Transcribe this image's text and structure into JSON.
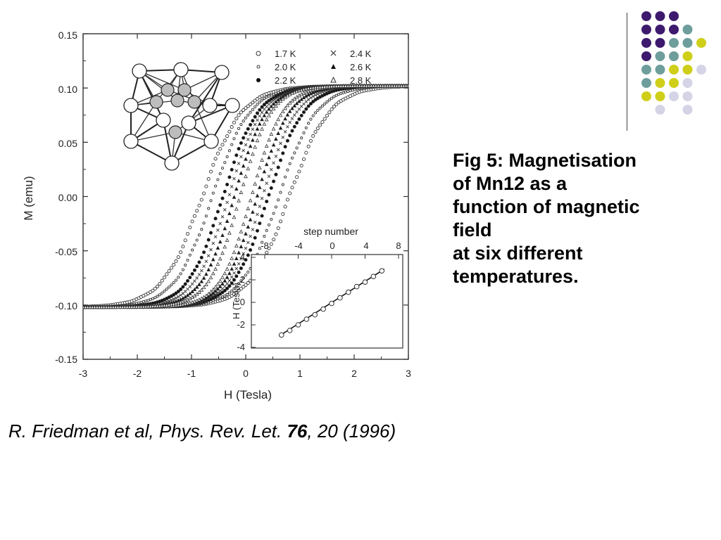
{
  "caption": {
    "lines": [
      "Fig 5: Magnetisation",
      "of Mn12 as a",
      "function of magnetic",
      "field",
      "at six different",
      "temperatures."
    ]
  },
  "citation": {
    "prefix": "R. Friedman et al, Phys. Rev. Let. ",
    "volume": "76",
    "suffix": ", 20 (1996)"
  },
  "decoration": {
    "colors": {
      "purple": "#3d1a6e",
      "teal": "#6e9e9c",
      "yellow": "#cfcf1a",
      "lavender": "#d4d4e6"
    }
  },
  "chart_data": [
    {
      "type": "scatter",
      "title": "",
      "xlabel": "H (Tesla)",
      "ylabel": "M (emu)",
      "xlim": [
        -3,
        3
      ],
      "ylim": [
        -0.15,
        0.15
      ],
      "x_ticks": [
        -3,
        -2,
        -1,
        0,
        1,
        2,
        3
      ],
      "x_tick_labels": [
        "-3",
        "-2",
        "-1",
        "0",
        "1",
        "2",
        "3"
      ],
      "y_ticks": [
        0.15,
        0.1,
        0.05,
        0.0,
        -0.05,
        -0.1,
        -0.15
      ],
      "y_tick_labels": [
        "0.15",
        "0.10",
        "0.05",
        "0.00",
        "-0.05",
        "-0.10",
        "-0.15"
      ],
      "grid": false,
      "legend_position": "top-right",
      "legend": [
        {
          "label": "1.7 K",
          "marker": "open-circle"
        },
        {
          "label": "2.4 K",
          "marker": "cross"
        },
        {
          "label": "2.0 K",
          "marker": "small-open-circle"
        },
        {
          "label": "2.6 K",
          "marker": "filled-triangle"
        },
        {
          "label": "2.2 K",
          "marker": "filled-circle"
        },
        {
          "label": "2.8 K",
          "marker": "open-triangle"
        }
      ],
      "series": [
        {
          "name": "1.7 K",
          "marker": "open-circle",
          "coercive_field": 2.3,
          "m_sat": 0.102
        },
        {
          "name": "2.0 K",
          "marker": "small-open-circle",
          "coercive_field": 1.75,
          "m_sat": 0.102
        },
        {
          "name": "2.2 K",
          "marker": "filled-circle",
          "coercive_field": 1.2,
          "m_sat": 0.102
        },
        {
          "name": "2.4 K",
          "marker": "cross",
          "coercive_field": 0.9,
          "m_sat": 0.102
        },
        {
          "name": "2.6 K",
          "marker": "filled-triangle",
          "coercive_field": 0.6,
          "m_sat": 0.102
        },
        {
          "name": "2.8 K",
          "marker": "open-triangle",
          "coercive_field": 0.3,
          "m_sat": 0.102
        }
      ]
    },
    {
      "type": "scatter",
      "title": "",
      "xlabel": "step number",
      "ylabel": "H (Tesla)",
      "xlim": [
        -8,
        8
      ],
      "ylim": [
        -4,
        4
      ],
      "x_ticks": [
        -8,
        -4,
        0,
        4,
        8
      ],
      "x_tick_labels": [
        "-8",
        "-4",
        "0",
        "4",
        "8"
      ],
      "y_ticks": [
        4,
        2,
        0,
        -2,
        -4
      ],
      "y_tick_labels": [
        "4",
        "2",
        "0",
        "-2",
        "-4"
      ],
      "x": [
        -6,
        -5,
        -4,
        -3,
        -2,
        -1,
        0,
        1,
        2,
        3,
        4,
        5,
        6
      ],
      "y": [
        -2.9,
        -2.5,
        -2.0,
        -1.5,
        -1.1,
        -0.6,
        -0.1,
        0.4,
        0.9,
        1.4,
        1.8,
        2.3,
        2.8
      ],
      "fit_line": {
        "x": [
          -6.3,
          6.3
        ],
        "y": [
          -3.0,
          2.95
        ]
      }
    }
  ]
}
